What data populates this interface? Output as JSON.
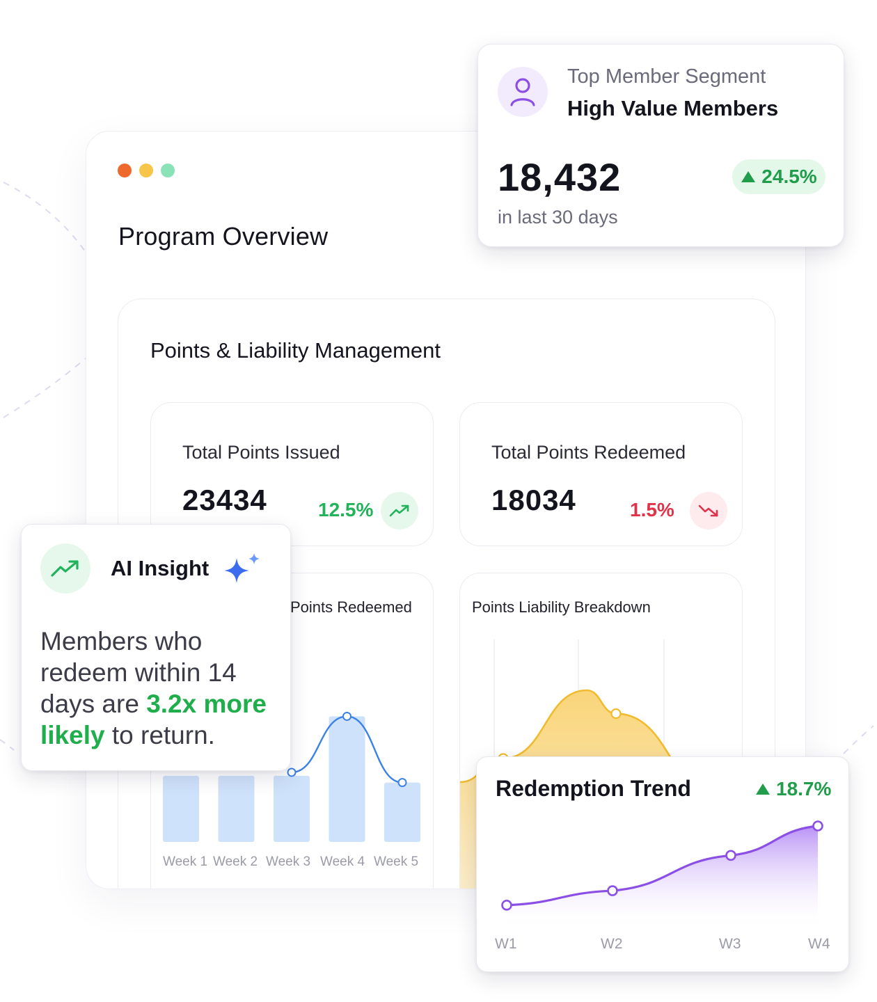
{
  "window": {
    "dots": [
      "#ee6a2c",
      "#f7c54a",
      "#8ae2b7"
    ],
    "title": "Program Overview"
  },
  "panel": {
    "title": "Points & Liability Management",
    "stats": [
      {
        "label": "Total Points Issued",
        "value": "23434",
        "change": "12.5%",
        "direction": "up",
        "color": "#22b35a",
        "icon": "trending-up-icon"
      },
      {
        "label": "Total Points Redeemed",
        "value": "18034",
        "change": "1.5%",
        "direction": "down",
        "color": "#e0334a",
        "icon": "trending-down-icon"
      }
    ],
    "redeemed_chart": {
      "title": "Points Redeemed",
      "x_labels": [
        "Week 1",
        "Week 2",
        "Week 3",
        "Week 4",
        "Week 5"
      ]
    },
    "liability_chart": {
      "title": "Points Liability Breakdown"
    }
  },
  "segment_card": {
    "kicker": "Top Member Segment",
    "name": "High Value Members",
    "value": "18,432",
    "change": "24.5%",
    "period": "in last 30 days",
    "icon": "user-icon"
  },
  "ai_card": {
    "title": "AI Insight",
    "body_before": "Members who redeem within 14 days are ",
    "body_highlight": "3.2x more likely",
    "body_after": " to return.",
    "icon": "trending-up-icon",
    "spark_icon": "sparkle-icon"
  },
  "trend_card": {
    "title": "Redemption Trend",
    "change": "18.7%",
    "x_labels": [
      "W1",
      "W2",
      "W3",
      "W4"
    ]
  },
  "chart_data": [
    {
      "type": "bar",
      "title": "Points Redeemed",
      "categories": [
        "Week 1",
        "Week 2",
        "Week 3",
        "Week 4",
        "Week 5"
      ],
      "values": [
        78,
        78,
        78,
        148,
        70
      ],
      "trend_line": [
        null,
        null,
        82,
        148,
        70
      ]
    },
    {
      "type": "area",
      "title": "Points Liability Breakdown",
      "values": [
        0.15,
        0.55,
        0.9,
        0.78,
        0.3,
        0.1
      ]
    },
    {
      "type": "line",
      "title": "Redemption Trend",
      "categories": [
        "W1",
        "W2",
        "W3",
        "W4"
      ],
      "values": [
        0.15,
        0.34,
        0.7,
        1.0
      ]
    }
  ]
}
